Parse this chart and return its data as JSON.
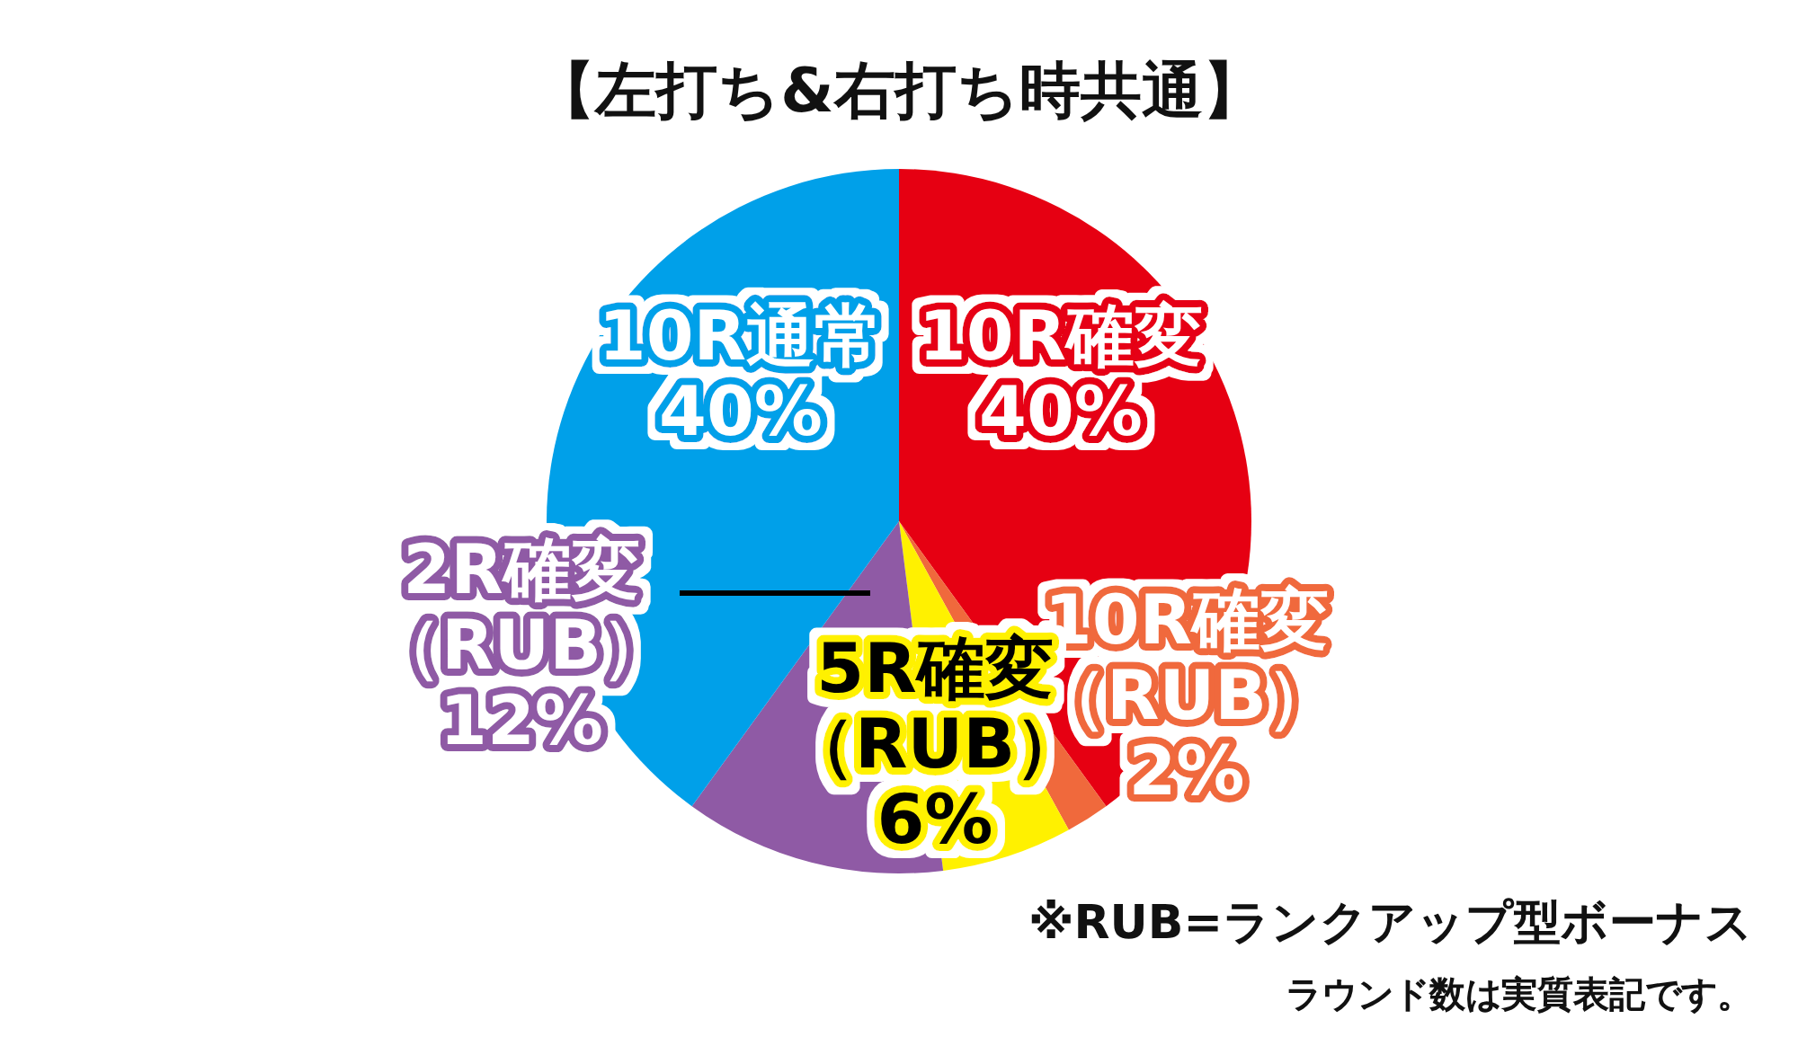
{
  "chart_data": {
    "type": "pie",
    "title": "【左打ち&右打ち時共通】",
    "categories": [
      "10R確変",
      "10R確変（RUB）",
      "5R確変（RUB）",
      "2R確変（RUB）",
      "10R通常"
    ],
    "values": [
      40,
      2,
      6,
      12,
      40
    ],
    "value_labels": [
      "40%",
      "2%",
      "6%",
      "12%",
      "40%"
    ],
    "colors": [
      "#e60012",
      "#f0693c",
      "#fff100",
      "#8f5aa5",
      "#00a0e9"
    ],
    "annotations": [
      "※RUB=ランクアップ型ボーナス",
      "ラウンド数は実質表記です。"
    ]
  }
}
